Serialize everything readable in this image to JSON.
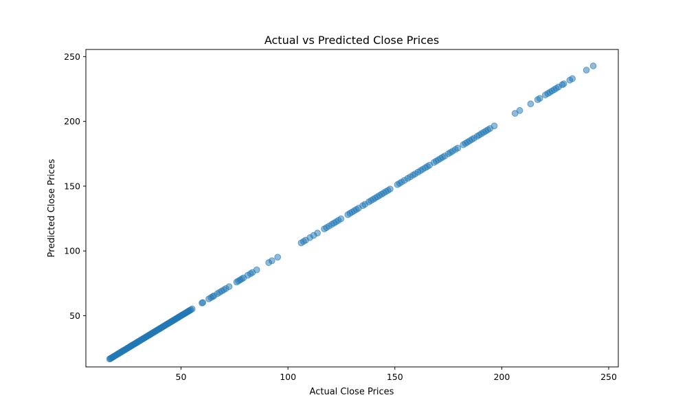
{
  "chart_data": {
    "type": "scatter",
    "title": "Actual vs Predicted Close Prices",
    "xlabel": "Actual Close Prices",
    "ylabel": "Predicted Close Prices",
    "xlim": [
      5.5,
      254.5
    ],
    "ylim": [
      10.5,
      255.5
    ],
    "xticks": [
      50,
      100,
      150,
      200,
      250
    ],
    "yticks": [
      50,
      100,
      150,
      200,
      250
    ],
    "grid": false,
    "marker_color": "#1f77b4",
    "marker_alpha": 0.5,
    "series": [
      {
        "x": [
          16.6,
          17.0,
          17.3,
          17.8,
          18.2,
          18.6,
          19.0,
          19.4,
          19.9,
          20.3,
          20.7,
          21.2,
          21.6,
          22.0,
          22.4,
          22.9,
          23.3,
          23.7,
          24.1,
          24.6,
          25.0,
          25.4,
          25.9,
          26.3,
          26.7,
          27.1,
          27.6,
          28.0,
          28.4,
          28.9,
          29.3,
          29.7,
          30.1,
          30.6,
          31.0,
          31.4,
          31.9,
          32.3,
          32.7,
          33.1,
          33.6,
          34.0,
          34.4,
          34.9,
          35.3,
          35.7,
          36.1,
          36.6,
          37.0,
          37.4,
          37.9,
          38.3,
          38.7,
          39.1,
          39.6,
          40.0,
          40.4,
          40.9,
          41.3,
          41.7,
          42.1,
          42.6,
          43.0,
          43.4,
          43.9,
          44.3,
          44.7,
          45.1,
          45.6,
          46.0,
          46.4,
          46.9,
          47.3,
          47.7,
          48.1,
          48.6,
          49.0,
          49.4,
          49.9,
          50.3,
          50.7,
          51.1,
          51.6,
          52.0,
          52.4,
          52.9,
          53.3,
          53.7,
          54.1,
          54.6,
          55.2,
          59.8,
          60.2,
          63.0,
          64.0,
          64.8,
          65.4,
          67.0,
          68.0,
          69.0,
          70.0,
          71.0,
          72.5,
          76.0,
          76.8,
          77.6,
          78.4,
          79.2,
          81.2,
          82.5,
          83.4,
          85.4,
          91.0,
          92.5,
          95.2,
          106.2,
          107.3,
          108.3,
          110.3,
          112.0,
          113.8,
          117.0,
          118.0,
          119.2,
          120.5,
          121.5,
          122.5,
          123.6,
          124.8,
          128.0,
          129.0,
          130.0,
          131.0,
          132.0,
          133.0,
          135.0,
          136.0,
          137.8,
          138.8,
          139.8,
          140.8,
          141.8,
          142.8,
          143.8,
          144.8,
          145.8,
          146.8,
          147.8,
          151.2,
          152.2,
          153.2,
          154.5,
          156.0,
          157.2,
          158.5,
          159.5,
          160.8,
          162.0,
          163.0,
          164.2,
          165.2,
          166.2,
          168.3,
          169.3,
          170.3,
          171.3,
          172.3,
          173.3,
          175.0,
          176.0,
          177.0,
          178.3,
          179.4,
          182.0,
          183.0,
          184.0,
          185.0,
          186.0,
          187.0,
          188.5,
          189.5,
          190.5,
          191.5,
          192.5,
          193.5,
          194.5,
          196.5,
          206.2,
          208.4,
          213.5,
          216.8,
          217.8,
          220.4,
          221.5,
          222.5,
          223.5,
          224.5,
          225.5,
          226.5,
          228.3,
          229.0,
          231.8,
          233.0,
          239.6,
          242.8
        ],
        "y": [
          16.6,
          17.0,
          17.3,
          17.8,
          18.2,
          18.6,
          19.0,
          19.4,
          19.9,
          20.3,
          20.7,
          21.2,
          21.6,
          22.0,
          22.4,
          22.9,
          23.3,
          23.7,
          24.1,
          24.6,
          25.0,
          25.4,
          25.9,
          26.3,
          26.7,
          27.1,
          27.6,
          28.0,
          28.4,
          28.9,
          29.3,
          29.7,
          30.1,
          30.6,
          31.0,
          31.4,
          31.9,
          32.3,
          32.7,
          33.1,
          33.6,
          34.0,
          34.4,
          34.9,
          35.3,
          35.7,
          36.1,
          36.6,
          37.0,
          37.4,
          37.9,
          38.3,
          38.7,
          39.1,
          39.6,
          40.0,
          40.4,
          40.9,
          41.3,
          41.7,
          42.1,
          42.6,
          43.0,
          43.4,
          43.9,
          44.3,
          44.7,
          45.1,
          45.6,
          46.0,
          46.4,
          46.9,
          47.3,
          47.7,
          48.1,
          48.6,
          49.0,
          49.4,
          49.9,
          50.3,
          50.7,
          51.1,
          51.6,
          52.0,
          52.4,
          52.9,
          53.3,
          53.7,
          54.1,
          54.6,
          55.2,
          59.8,
          60.2,
          63.0,
          64.0,
          64.8,
          65.4,
          67.0,
          68.0,
          69.0,
          70.0,
          71.0,
          72.5,
          76.0,
          76.8,
          77.6,
          78.4,
          79.2,
          81.2,
          82.5,
          83.4,
          85.4,
          91.0,
          92.5,
          95.2,
          106.2,
          107.3,
          108.3,
          110.3,
          112.0,
          113.8,
          117.0,
          118.0,
          119.2,
          120.5,
          121.5,
          122.5,
          123.6,
          124.8,
          128.0,
          129.0,
          130.0,
          131.0,
          132.0,
          133.0,
          135.0,
          136.0,
          137.8,
          138.8,
          139.8,
          140.8,
          141.8,
          142.8,
          143.8,
          144.8,
          145.8,
          146.8,
          147.8,
          151.2,
          152.2,
          153.2,
          154.5,
          156.0,
          157.2,
          158.5,
          159.5,
          160.8,
          162.0,
          163.0,
          164.2,
          165.2,
          166.2,
          168.3,
          169.3,
          170.3,
          171.3,
          172.3,
          173.3,
          175.0,
          176.0,
          177.0,
          178.3,
          179.4,
          182.0,
          183.0,
          184.0,
          185.0,
          186.0,
          187.0,
          188.5,
          189.5,
          190.5,
          191.5,
          192.5,
          193.5,
          194.5,
          196.5,
          206.2,
          208.4,
          213.5,
          216.8,
          217.8,
          220.4,
          221.5,
          222.5,
          223.5,
          224.5,
          225.5,
          226.5,
          228.3,
          229.0,
          231.8,
          233.0,
          239.6,
          242.8
        ]
      }
    ]
  }
}
